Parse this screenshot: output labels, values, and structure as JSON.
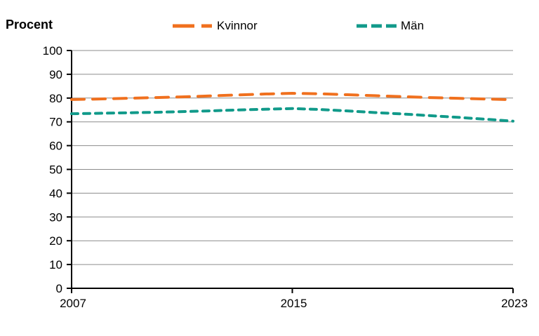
{
  "chart_data": {
    "type": "line",
    "axis_title": "Procent",
    "x": [
      2007,
      2008,
      2009,
      2010,
      2011,
      2012,
      2013,
      2014,
      2015,
      2016,
      2017,
      2018,
      2019,
      2020,
      2021,
      2022,
      2023
    ],
    "x_ticks": [
      2007,
      2015,
      2023
    ],
    "x_tick_labels": [
      "2007",
      "2015",
      "2023"
    ],
    "ylim": [
      0,
      100
    ],
    "y_tick_step": 10,
    "y_tick_labels": [
      "0",
      "10",
      "20",
      "30",
      "40",
      "50",
      "60",
      "70",
      "80",
      "90",
      "100"
    ],
    "grid": "horizontal",
    "legend_position": "top",
    "gridline_color": "#8C8C8C",
    "axis_color": "#000000",
    "series": [
      {
        "name": "Kvinnor",
        "color": "#F0701E",
        "dash_style": "long-dash",
        "values": [
          79.4,
          79.6,
          79.9,
          80.2,
          80.5,
          80.9,
          81.3,
          81.7,
          82.0,
          81.8,
          81.4,
          81.0,
          80.6,
          80.2,
          79.9,
          79.6,
          79.3
        ]
      },
      {
        "name": "Män",
        "color": "#119A8A",
        "dash_style": "short-dash",
        "values": [
          73.4,
          73.6,
          73.8,
          74.0,
          74.3,
          74.6,
          75.0,
          75.3,
          75.6,
          75.2,
          74.6,
          73.9,
          73.3,
          72.6,
          71.9,
          71.1,
          70.3
        ]
      }
    ]
  }
}
